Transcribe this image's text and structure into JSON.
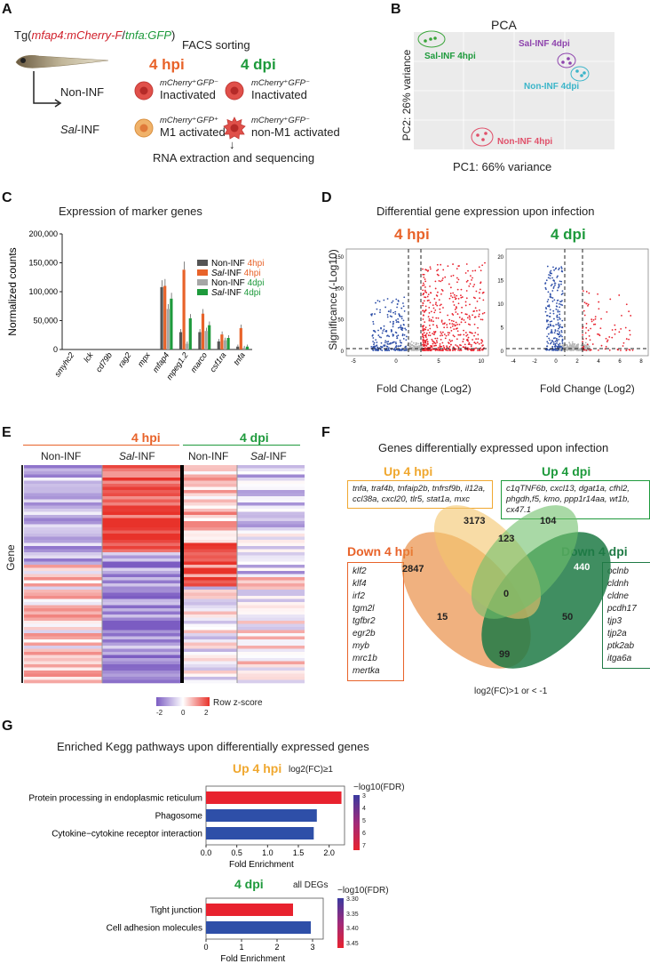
{
  "panels": {
    "A": {
      "letter": "A",
      "tg_prefix": "Tg(",
      "tg_red": "mfap4:mCherry-F",
      "tg_sep": "/",
      "tg_green": "tnfa:GFP",
      "tg_suffix": ")",
      "facs": "FACS sorting",
      "hpi": "4 hpi",
      "dpi": "4 dpi",
      "non_inf": "Non-INF",
      "sal_inf_italic": "Sal",
      "sal_inf_rest": "-INF",
      "cell_label_1a": "mCherry⁺GFP⁻",
      "cell_label_1b": "Inactivated",
      "cell_label_2a": "mCherry⁺GFP⁻",
      "cell_label_2b": "Inactivated",
      "cell_label_3a": "mCherry⁺GFP⁺",
      "cell_label_3b": "M1 activated",
      "cell_label_4a": "mCherry⁺GFP⁻",
      "cell_label_4b": "non-M1 activated",
      "rna": "RNA extraction and sequencing",
      "arrow": "↓"
    },
    "B": {
      "letter": "B",
      "title": "PCA",
      "xlabel": "PC1: 66% variance",
      "ylabel": "PC2: 26% variance",
      "groups": [
        "Sal-INF 4hpi",
        "Sal-INF 4dpi",
        "Non-INF 4dpi",
        "Non-INF 4hpi"
      ]
    },
    "C": {
      "letter": "C",
      "title": "Expression of marker genes"
    },
    "D": {
      "letter": "D",
      "title": "Differential gene expression upon infection",
      "sub1": "4 hpi",
      "sub2": "4 dpi",
      "ylabel": "Significance (-Log10)",
      "xlabel1": "Fold Change (Log2)",
      "xlabel2": "Fold Change (Log2)",
      "ticks1_y": [
        "150",
        "100",
        "50",
        "0"
      ],
      "ticks1_x": [
        "-5",
        "0",
        "5",
        "10"
      ],
      "ticks2_y": [
        "20",
        "15",
        "10",
        "5",
        "0"
      ],
      "ticks2_x": [
        "-4",
        "-2",
        "0",
        "2",
        "4",
        "6",
        "8"
      ]
    },
    "E": {
      "letter": "E",
      "hpi": "4 hpi",
      "dpi": "4 dpi",
      "col1": "Non-INF",
      "col2_italic": "Sal",
      "col2_rest": "-INF",
      "col3": "Non-INF",
      "col4_italic": "Sal",
      "col4_rest": "-INF",
      "ylabel": "Gene",
      "scale_min": "-2",
      "scale_mid": "0",
      "scale_max": "2",
      "scale_label": "Row z-score"
    },
    "F": {
      "letter": "F",
      "title": "Genes differentially expressed upon infection",
      "up4hpi": "Up 4 hpi",
      "up4dpi": "Up 4 dpi",
      "down4hpi": "Down 4 hpi",
      "down4dpi": "Down 4 dpi",
      "up4hpi_genes": "tnfa, traf4b, tnfaip2b, tnfrsf9b, il12a, ccl38a, cxcl20, tlr5, stat1a, mxc",
      "up4dpi_genes": "c1qTNF6b, cxcl13, dgat1a, cfhl2, phgdh,f5, kmo, ppp1r14aa, wt1b, cx47.1",
      "down4hpi_genes": [
        "klf2",
        "klf4",
        "irf2",
        "tgm2l",
        "tgfbr2",
        "egr2b",
        "myb",
        "mrc1b",
        "mertka"
      ],
      "down4dpi_genes": [
        "oclnb",
        "cldnh",
        "cldne",
        "pcdh17",
        "tjp3",
        "tjp2a",
        "ptk2ab",
        "itga6a"
      ],
      "n_down4hpi": "2847",
      "n_up4hpi": "3173",
      "n_up4dpi": "104",
      "n_down4dpi": "440",
      "n_up_hpi_up_dpi": "123",
      "n_center": "0",
      "n_15": "15",
      "n_50": "50",
      "n_99": "99",
      "criterion": "log2(FC)>1 or < -1"
    },
    "G": {
      "letter": "G",
      "title": "Enriched Kegg pathways upon differentially expressed genes",
      "top_title": "Up 4 hpi",
      "top_note": "log2(FC)≥1",
      "top_legend_title": "−log10(FDR)",
      "top_legend_ticks": [
        "3",
        "4",
        "5",
        "6",
        "7"
      ],
      "top_xlabel": "Fold Enrichment",
      "top_xticks": [
        "0.0",
        "0.5",
        "1.0",
        "1.5",
        "2.0"
      ],
      "bottom_title": "4 dpi",
      "bottom_note": "all DEGs",
      "bottom_legend_title": "−log10(FDR)",
      "bottom_legend_ticks": [
        "3.30",
        "3.35",
        "3.40",
        "3.45"
      ],
      "bottom_xlabel": "Fold Enrichment",
      "bottom_xticks": [
        "0",
        "1",
        "2",
        "3"
      ]
    }
  },
  "chart_data": [
    {
      "type": "scatter",
      "title": "PCA",
      "xlabel": "PC1: 66% variance",
      "ylabel": "PC2: 26% variance",
      "series": [
        {
          "name": "Sal-INF 4hpi",
          "color": "#3aa53a"
        },
        {
          "name": "Sal-INF 4dpi",
          "color": "#8e44ad"
        },
        {
          "name": "Non-INF 4dpi",
          "color": "#3bb5c9"
        },
        {
          "name": "Non-INF 4hpi",
          "color": "#e0506a"
        }
      ]
    },
    {
      "type": "bar",
      "title": "Expression of marker genes",
      "ylabel": "Normalized counts",
      "ylim": [
        0,
        200000
      ],
      "yticks": [
        "0",
        "50,000",
        "100,000",
        "150,000",
        "200,000"
      ],
      "categories": [
        "smyhc2",
        "lck",
        "cd79b",
        "rag2",
        "mpx",
        "mfap4",
        "mpeg1.2",
        "marco",
        "csf1ra",
        "tnfa"
      ],
      "series": [
        {
          "name": "Non-INF 4hpi",
          "label_a": "Non-INF ",
          "label_b": "4hpi",
          "color": "#555555",
          "label_color": "#e8632a",
          "values": [
            0,
            0,
            0,
            0,
            0,
            108000,
            30000,
            30000,
            14000,
            5000
          ]
        },
        {
          "name": "Sal-INF 4hpi",
          "label_a": "Sal",
          "label_a2": "-INF ",
          "label_b": "4hpi",
          "color": "#e8632a",
          "label_color": "#e8632a",
          "values": [
            0,
            0,
            0,
            0,
            0,
            110000,
            138000,
            62000,
            26000,
            37000
          ]
        },
        {
          "name": "Non-INF 4dpi",
          "label_a": "Non-INF ",
          "label_b": "4dpi",
          "color": "#a6a6a6",
          "label_color": "#1e9a3c",
          "values": [
            0,
            0,
            0,
            0,
            0,
            70000,
            10000,
            32000,
            16000,
            3000
          ]
        },
        {
          "name": "Sal-INF 4dpi",
          "label_a": "Sal",
          "label_a2": "-INF ",
          "label_b": "4dpi",
          "color": "#1e9a3c",
          "label_color": "#1e9a3c",
          "values": [
            0,
            0,
            0,
            0,
            0,
            88000,
            54000,
            42000,
            20000,
            5000
          ]
        }
      ]
    },
    {
      "type": "bar",
      "title": "Up 4 hpi",
      "xlabel": "Fold Enrichment",
      "orientation": "horizontal",
      "xlim": [
        0,
        2.25
      ],
      "categories": [
        "Protein processing in endoplasmic reticulum",
        "Phagosome",
        "Cytokine−cytokine receptor interaction"
      ],
      "values": [
        2.2,
        1.8,
        1.75
      ],
      "colors": [
        "#e8222e",
        "#2e4fa8",
        "#2e4fa8"
      ]
    },
    {
      "type": "bar",
      "title": "4 dpi",
      "xlabel": "Fold Enrichment",
      "orientation": "horizontal",
      "xlim": [
        0,
        3.3
      ],
      "categories": [
        "Tight junction",
        "Cell adhesion molecules"
      ],
      "values": [
        2.45,
        2.95
      ],
      "colors": [
        "#e8222e",
        "#2e4fa8"
      ]
    }
  ]
}
